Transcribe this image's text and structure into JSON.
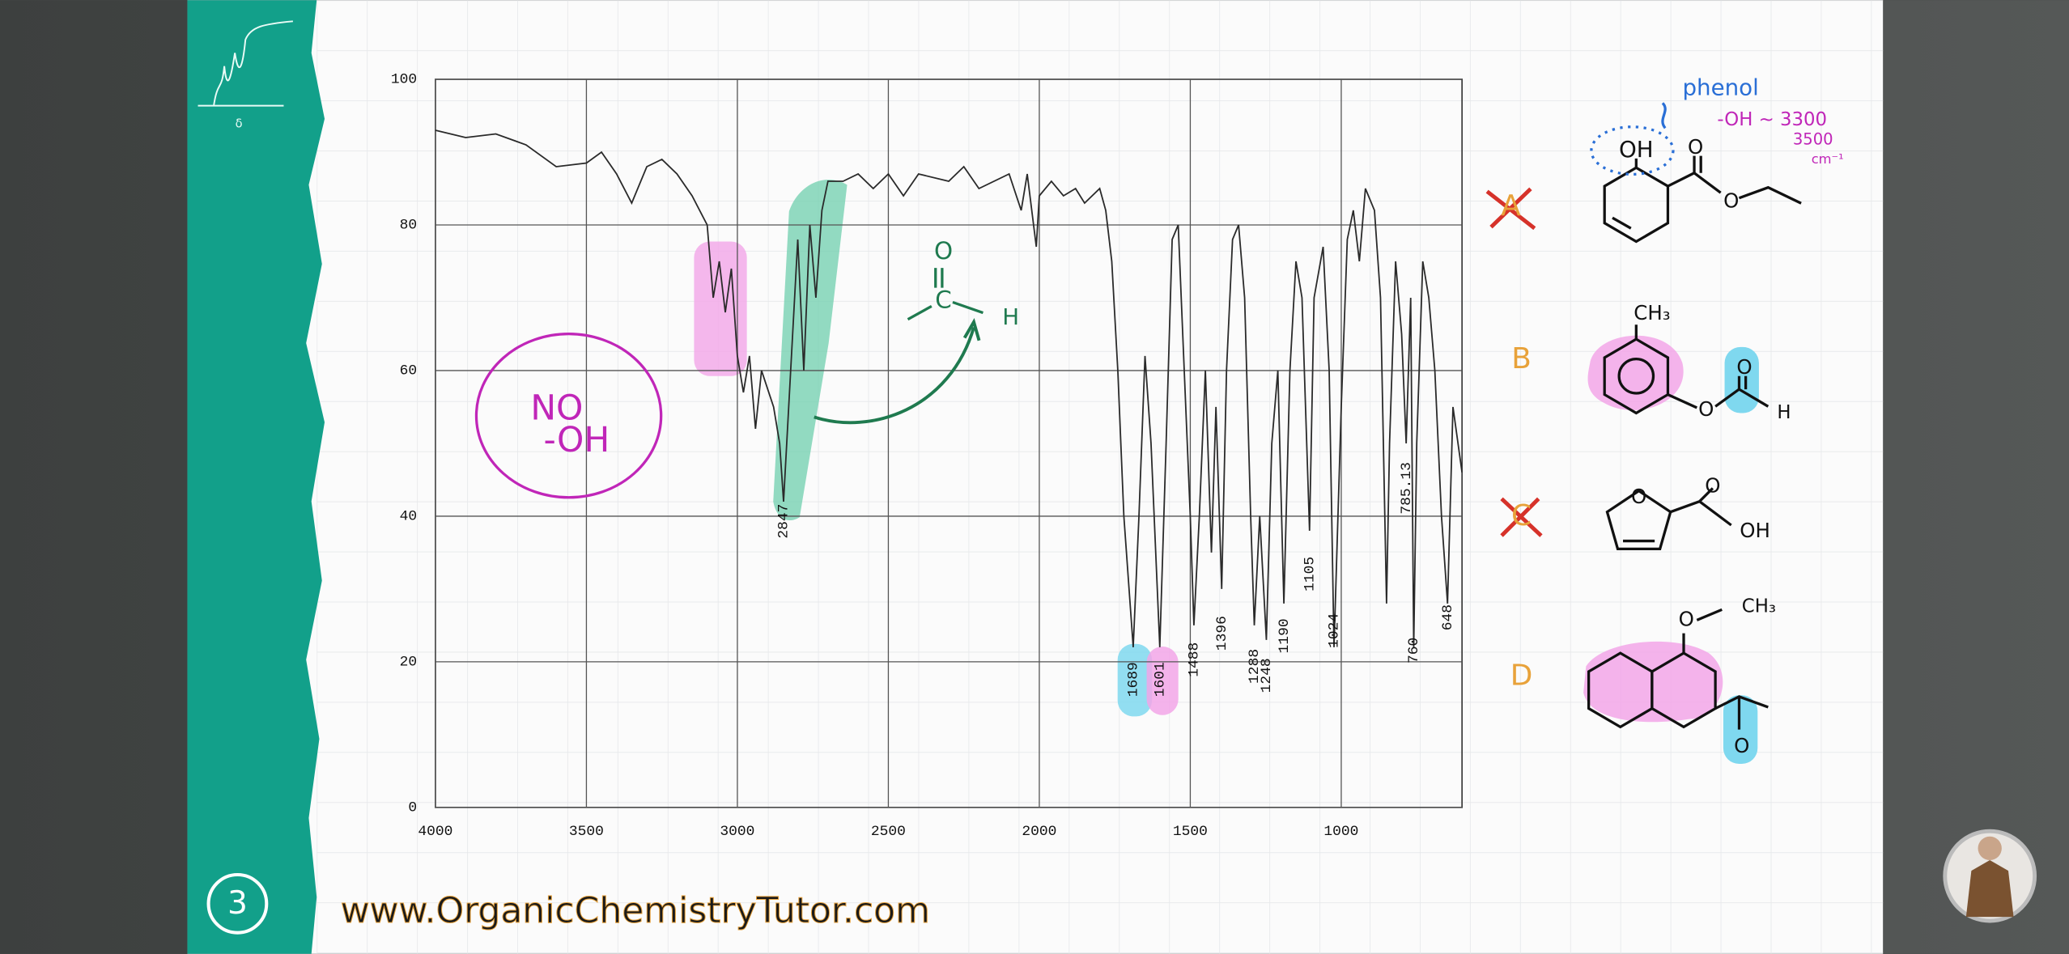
{
  "chart_data": {
    "type": "line",
    "x": [
      4000,
      3900,
      3800,
      3700,
      3600,
      3500,
      3450,
      3400,
      3350,
      3300,
      3250,
      3200,
      3150,
      3100,
      3080,
      3060,
      3040,
      3020,
      3000,
      2980,
      2960,
      2940,
      2920,
      2880,
      2860,
      2847,
      2830,
      2800,
      2780,
      2760,
      2740,
      2720,
      2700,
      2650,
      2600,
      2550,
      2500,
      2450,
      2400,
      2300,
      2250,
      2200,
      2100,
      2060,
      2040,
      2010,
      2000,
      1960,
      1920,
      1880,
      1850,
      1800,
      1780,
      1760,
      1740,
      1720,
      1689,
      1670,
      1650,
      1630,
      1601,
      1580,
      1560,
      1540,
      1520,
      1500,
      1488,
      1470,
      1450,
      1430,
      1415,
      1396,
      1380,
      1360,
      1340,
      1320,
      1300,
      1288,
      1270,
      1248,
      1230,
      1210,
      1190,
      1170,
      1150,
      1130,
      1105,
      1090,
      1060,
      1040,
      1024,
      1000,
      980,
      960,
      940,
      920,
      890,
      870,
      850,
      840,
      820,
      800,
      785,
      770,
      760,
      750,
      730,
      710,
      690,
      668,
      648,
      630,
      600
    ],
    "values": [
      93,
      92,
      92.5,
      91,
      88,
      88.5,
      90,
      87,
      83,
      88,
      89,
      87,
      84,
      80,
      70,
      75,
      68,
      74,
      62,
      57,
      62,
      52,
      60,
      55,
      50,
      42,
      55,
      78,
      60,
      80,
      70,
      82,
      86,
      86,
      87,
      85,
      87,
      84,
      87,
      86,
      88,
      85,
      87,
      82,
      87,
      77,
      84,
      86,
      84,
      85,
      83,
      85,
      82,
      75,
      60,
      40,
      22,
      40,
      62,
      50,
      22,
      50,
      78,
      80,
      60,
      40,
      25,
      40,
      60,
      35,
      55,
      30,
      60,
      78,
      80,
      70,
      40,
      25,
      40,
      23,
      50,
      60,
      28,
      60,
      75,
      70,
      38,
      70,
      77,
      60,
      22,
      55,
      78,
      82,
      75,
      85,
      82,
      70,
      28,
      50,
      75,
      65,
      50,
      70,
      22,
      50,
      75,
      70,
      60,
      40,
      28,
      55,
      46
    ],
    "color": "#2a2a2a",
    "xlim": [
      4000,
      600
    ],
    "ylim": [
      0,
      100
    ],
    "xticks": [
      4000,
      3500,
      3000,
      2500,
      2000,
      1500,
      1000
    ],
    "yticks": [
      0,
      20,
      40,
      60,
      80,
      100
    ],
    "grid": true,
    "peak_labels": [
      2847,
      1689,
      1601,
      1488,
      1396,
      1288,
      1248,
      1190,
      1105,
      1024,
      785.13,
      760,
      648
    ],
    "annotations": {
      "no_oh": [
        "NO",
        "-OH"
      ],
      "aldehyde": [
        "O",
        "C",
        "H"
      ]
    }
  },
  "options": [
    {
      "letter": "A",
      "atoms": [
        "OH",
        "O",
        "O"
      ],
      "notes": [
        "phenol",
        "-OH ~ 3300",
        "3500",
        "cm⁻¹"
      ]
    },
    {
      "letter": "B",
      "atoms": [
        "CH₃",
        "O",
        "O",
        "H"
      ]
    },
    {
      "letter": "C",
      "atoms": [
        "O",
        "O",
        "OH"
      ]
    },
    {
      "letter": "D",
      "atoms": [
        "O",
        "CH₃",
        "O"
      ]
    }
  ],
  "footer": {
    "website": "www.OrganicChemistryTutor.com",
    "slide_number": 3,
    "logo_symbol": "δ"
  }
}
